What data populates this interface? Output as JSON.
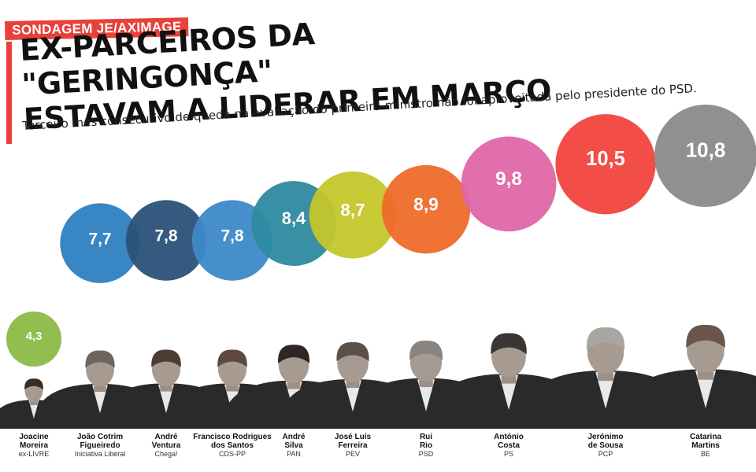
{
  "tag": "SONDAGEM JE/AXIMAGE",
  "headline": {
    "line1": "EX-PARCEIROS DA \"GERINGONÇA\"",
    "line2": "ESTAVAM A LIDERAR EM MARÇO"
  },
  "subtitle": "Terceiro mês consecutivo de queda na avaliação do primeiro-ministro não foi aproveitada pelo presidente do PSD.",
  "chart_data": {
    "type": "bar",
    "categories": [
      "Joacine Moreira",
      "João Cotrim Figueiredo",
      "André Ventura",
      "Francisco Rodrigues dos Santos",
      "André Silva",
      "José Luís Ferreira",
      "Rui Rio",
      "António Costa",
      "Jerónimo de Sousa",
      "Catarina Martins"
    ],
    "values": [
      4.3,
      7.7,
      7.8,
      7.8,
      8.4,
      8.7,
      8.9,
      9.8,
      10.5,
      10.8
    ],
    "value_labels": [
      "4,3",
      "7,7",
      "7,8",
      "7,8",
      "8,4",
      "8,7",
      "8,9",
      "9,8",
      "10,5",
      "10,8"
    ],
    "name_lines": [
      [
        "Joacine",
        "Moreira"
      ],
      [
        "João Cotrim",
        "Figueiredo"
      ],
      [
        "André",
        "Ventura"
      ],
      [
        "Francisco Rodrigues",
        "dos Santos"
      ],
      [
        "André",
        "Silva"
      ],
      [
        "José Luís",
        "Ferreira"
      ],
      [
        "Rui",
        "Rio"
      ],
      [
        "António",
        "Costa"
      ],
      [
        "Jerónimo",
        "de Sousa"
      ],
      [
        "Catarina",
        "Martins"
      ]
    ],
    "parties": [
      "ex-LIVRE",
      "Iniciativa Liberal",
      "Chega!",
      "CDS-PP",
      "PAN",
      "PEV",
      "PSD",
      "PS",
      "PCP",
      "BE"
    ],
    "colors": [
      "#8bba45",
      "#2d7fc0",
      "#2b5178",
      "#3d89c7",
      "#2e8aa0",
      "#c4c62a",
      "#ee6c2a",
      "#de67a6",
      "#f2433d",
      "#8a8a8a"
    ],
    "photo_tones": [
      "#3b2b22",
      "#6e655c",
      "#4d3c31",
      "#5e4a3c",
      "#2f2522",
      "#5b514a",
      "#8a8480",
      "#3b3533",
      "#a9a6a2",
      "#6a5548"
    ]
  }
}
